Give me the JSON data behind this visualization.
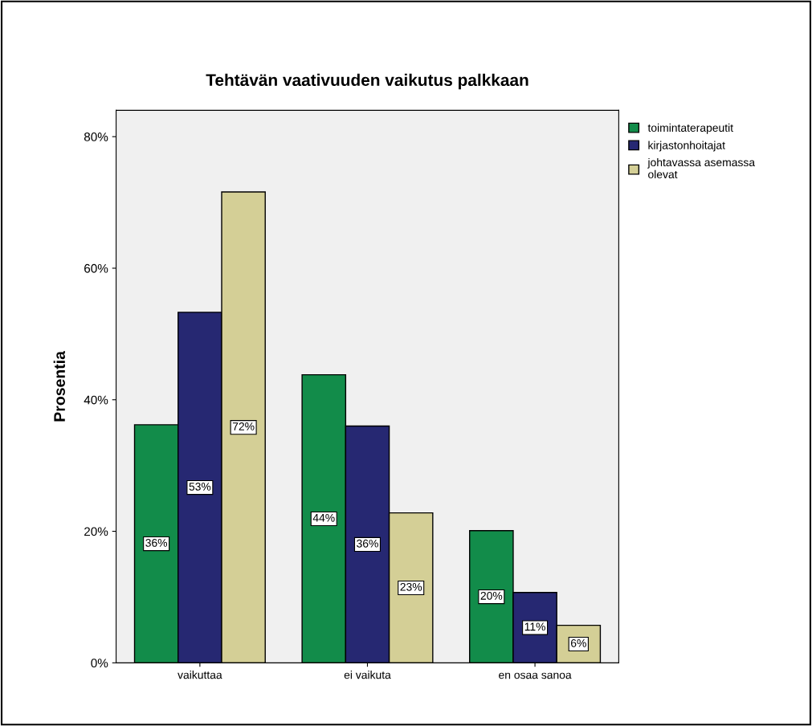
{
  "chart_data": {
    "type": "bar",
    "title": "Tehtävän vaativuuden vaikutus palkkaan",
    "ylabel": "Prosentia",
    "categories": [
      "vaikuttaa",
      "ei vaikuta",
      "en osaa sanoa"
    ],
    "series": [
      {
        "name": "toimintaterapeutit",
        "color": "#128c4a",
        "values": [
          36.2,
          43.8,
          20.1
        ],
        "value_labels": [
          "36%",
          "44%",
          "20%"
        ]
      },
      {
        "name": "kirjastonhoitajat",
        "color": "#262872",
        "values": [
          53.3,
          36.0,
          10.7
        ],
        "value_labels": [
          "53%",
          "36%",
          "11%"
        ]
      },
      {
        "name": "johtavassa asemassa\nolevat",
        "color": "#d4cf96",
        "values": [
          71.6,
          22.8,
          5.7
        ],
        "value_labels": [
          "72%",
          "23%",
          "6%"
        ]
      }
    ],
    "ylim": [
      0,
      84
    ],
    "yticks": [
      {
        "value": 0,
        "label": "0%"
      },
      {
        "value": 20,
        "label": "20%"
      },
      {
        "value": 40,
        "label": "40%"
      },
      {
        "value": 60,
        "label": "60%"
      },
      {
        "value": 80,
        "label": "80%"
      }
    ],
    "grid": false,
    "legend": "top right"
  }
}
